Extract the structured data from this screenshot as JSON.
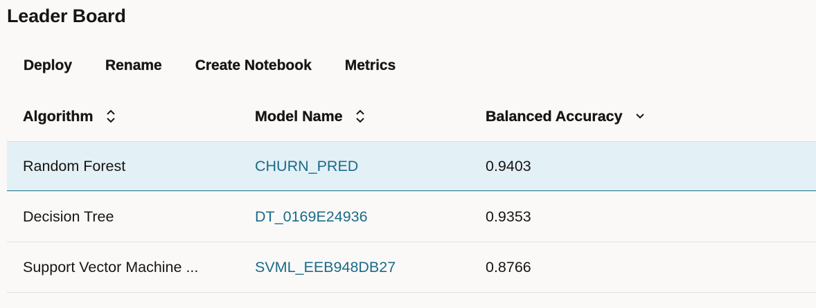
{
  "page": {
    "title": "Leader Board"
  },
  "toolbar": {
    "deploy_label": "Deploy",
    "rename_label": "Rename",
    "create_notebook_label": "Create Notebook",
    "metrics_label": "Metrics"
  },
  "table": {
    "columns": [
      {
        "label": "Algorithm",
        "sort_icon": "sort-both-icon"
      },
      {
        "label": "Model Name",
        "sort_icon": "sort-both-icon"
      },
      {
        "label": "Balanced Accuracy",
        "sort_icon": "chevron-down-icon"
      }
    ],
    "rows": [
      {
        "algorithm": "Random Forest",
        "model_name": "CHURN_PRED",
        "balanced_accuracy": "0.9403",
        "selected": true
      },
      {
        "algorithm": "Decision Tree",
        "model_name": "DT_0169E24936",
        "balanced_accuracy": "0.9353",
        "selected": false
      },
      {
        "algorithm": "Support Vector Machine ...",
        "model_name": "SVML_EEB948DB27",
        "balanced_accuracy": "0.8766",
        "selected": false
      }
    ]
  },
  "colors": {
    "background": "#fbf9f8",
    "selected_row": "#e3f0f6",
    "selected_row_border": "#2a7e93",
    "link": "#1a6b88",
    "text": "#161513"
  }
}
